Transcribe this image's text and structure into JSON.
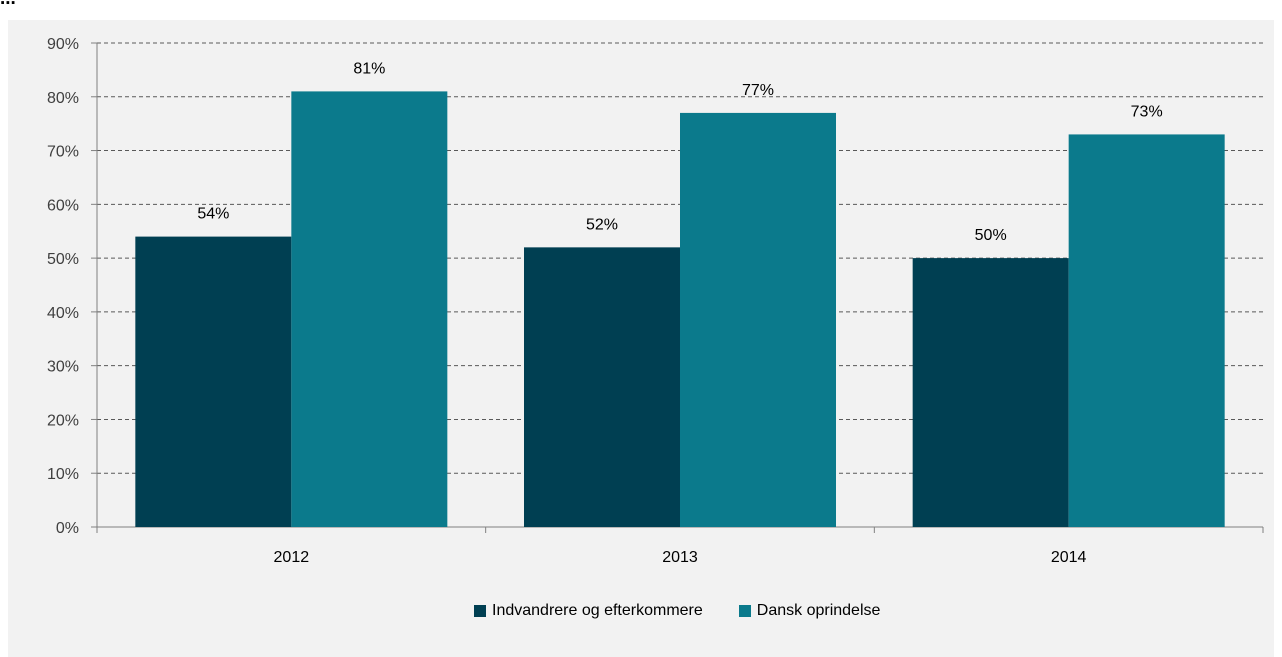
{
  "page_title": "...",
  "chart_data": {
    "type": "bar",
    "title": "",
    "xlabel": "",
    "ylabel": "",
    "categories": [
      "2012",
      "2013",
      "2014"
    ],
    "series": [
      {
        "name": "Indvandrere og efterkommere",
        "values": [
          54,
          52,
          50
        ],
        "color": "#003f52"
      },
      {
        "name": "Dansk oprindelse",
        "values": [
          81,
          77,
          73
        ],
        "color": "#0b7a8c"
      }
    ],
    "ylim": [
      0,
      90
    ],
    "yticks": [
      0,
      10,
      20,
      30,
      40,
      50,
      60,
      70,
      80,
      90
    ],
    "ytick_labels": [
      "0%",
      "10%",
      "20%",
      "30%",
      "40%",
      "50%",
      "60%",
      "70%",
      "80%",
      "90%"
    ],
    "data_labels": [
      [
        "54%",
        "52%",
        "50%"
      ],
      [
        "81%",
        "77%",
        "73%"
      ]
    ],
    "grid": true,
    "legend_position": "bottom",
    "background_color": "#f2f2f2"
  }
}
